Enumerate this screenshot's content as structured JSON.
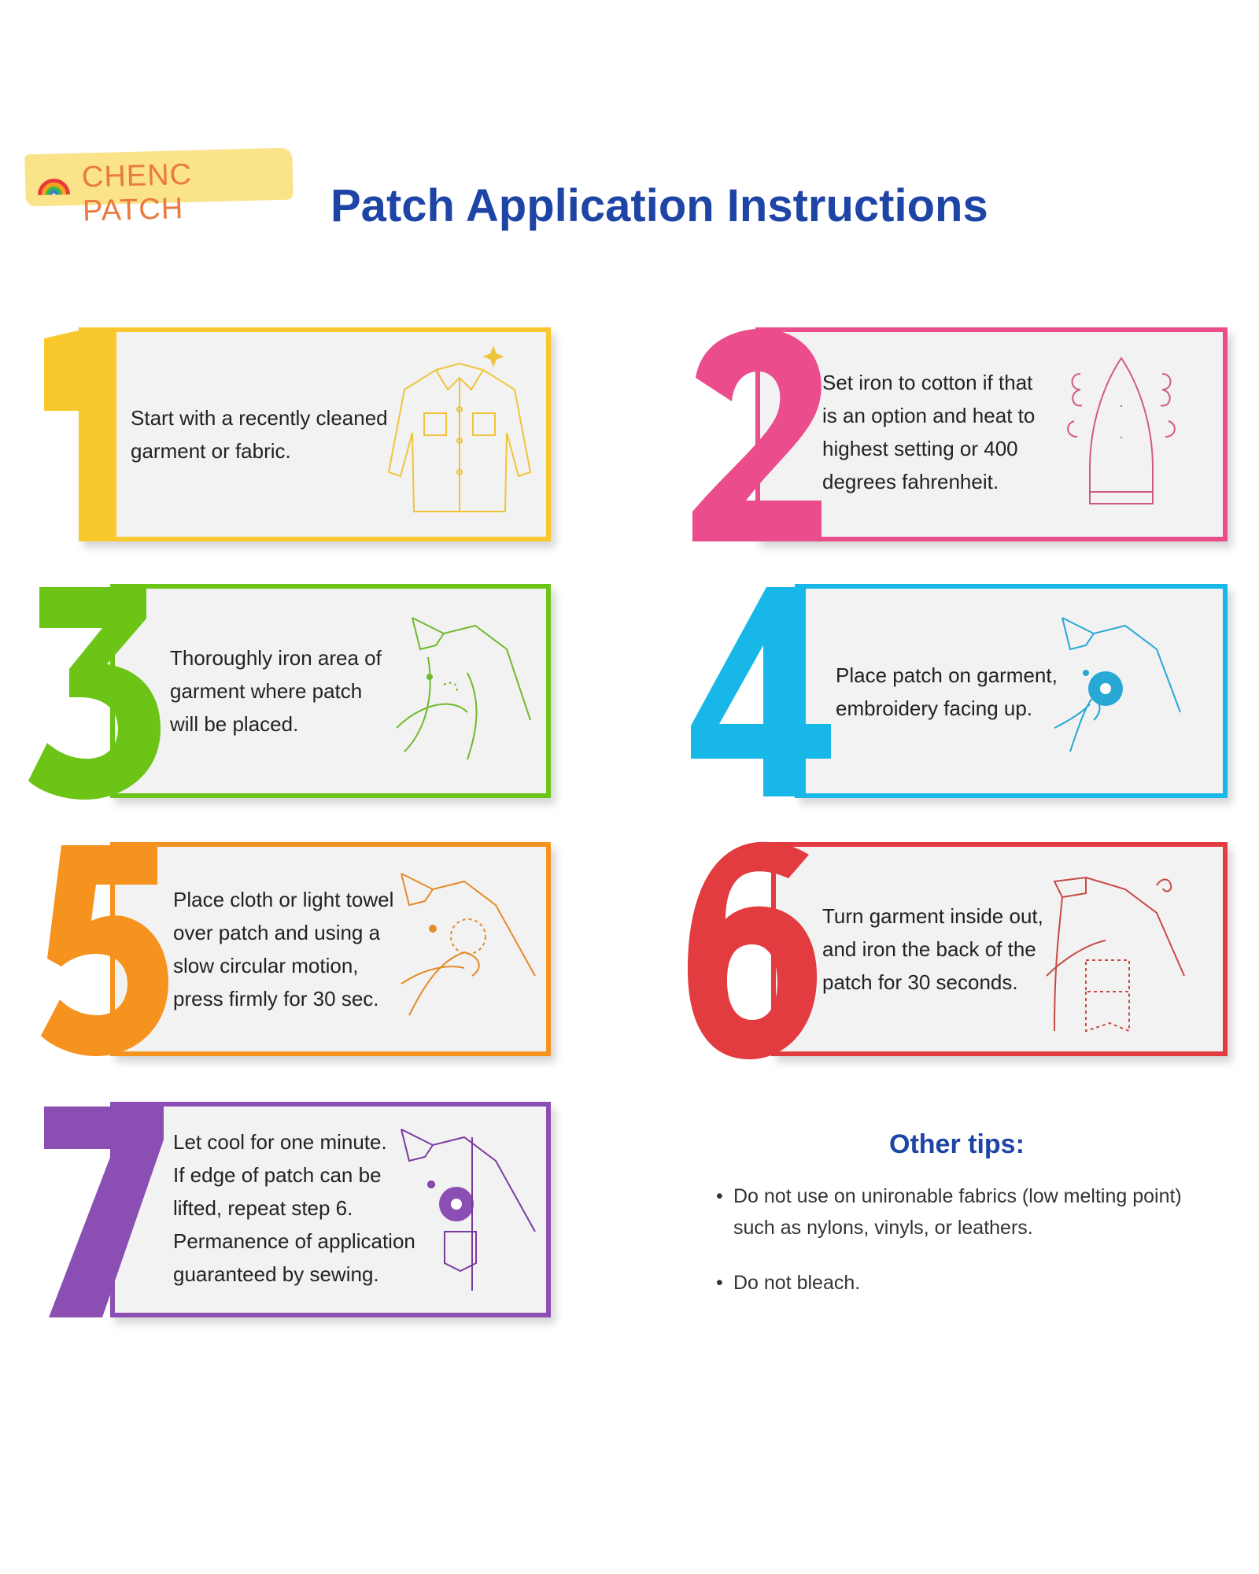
{
  "brand": {
    "name": "CHENC PATCH",
    "logo_icon": "rainbow-icon"
  },
  "page_title": "Patch Application Instructions",
  "colors": {
    "title": "#1e45a6",
    "step1": "#f9c82c",
    "step2": "#ea4c8c",
    "step3": "#6cc417",
    "step4": "#17b8e8",
    "step5": "#f6921e",
    "step6": "#e23b40",
    "step7": "#8b4fb4"
  },
  "steps": [
    {
      "number": "1",
      "text": "Start with a recently cleaned\ngarment or fabric.",
      "icon": "jacket-icon"
    },
    {
      "number": "2",
      "text": "Set iron to cotton if that\nis an option and heat to\nhighest setting or 400\ndegrees fahrenheit.",
      "icon": "iron-icon"
    },
    {
      "number": "3",
      "text": "Thoroughly iron area of\ngarment where patch\nwill be placed.",
      "icon": "ironing-shirt-icon"
    },
    {
      "number": "4",
      "text": "Place patch on garment,\nembroidery facing up.",
      "icon": "placing-patch-icon"
    },
    {
      "number": "5",
      "text": "Place cloth or light towel\nover patch and using a\nslow circular motion,\npress firmly for 30 sec.",
      "icon": "pressing-patch-icon"
    },
    {
      "number": "6",
      "text": "Turn garment inside out,\nand iron the back of the\npatch for 30 seconds.",
      "icon": "inside-out-shirt-icon"
    },
    {
      "number": "7",
      "text": "Let cool for one minute.\nIf edge of patch can be\nlifted, repeat step 6.\nPermanence of application\nguaranteed by sewing.",
      "icon": "shirt-with-patch-icon"
    }
  ],
  "tips": {
    "heading": "Other tips:",
    "bullet": "•",
    "items": [
      "Do not use on unironable fabrics (low melting point)\nsuch as nylons, vinyls, or leathers.",
      "Do not bleach."
    ]
  }
}
